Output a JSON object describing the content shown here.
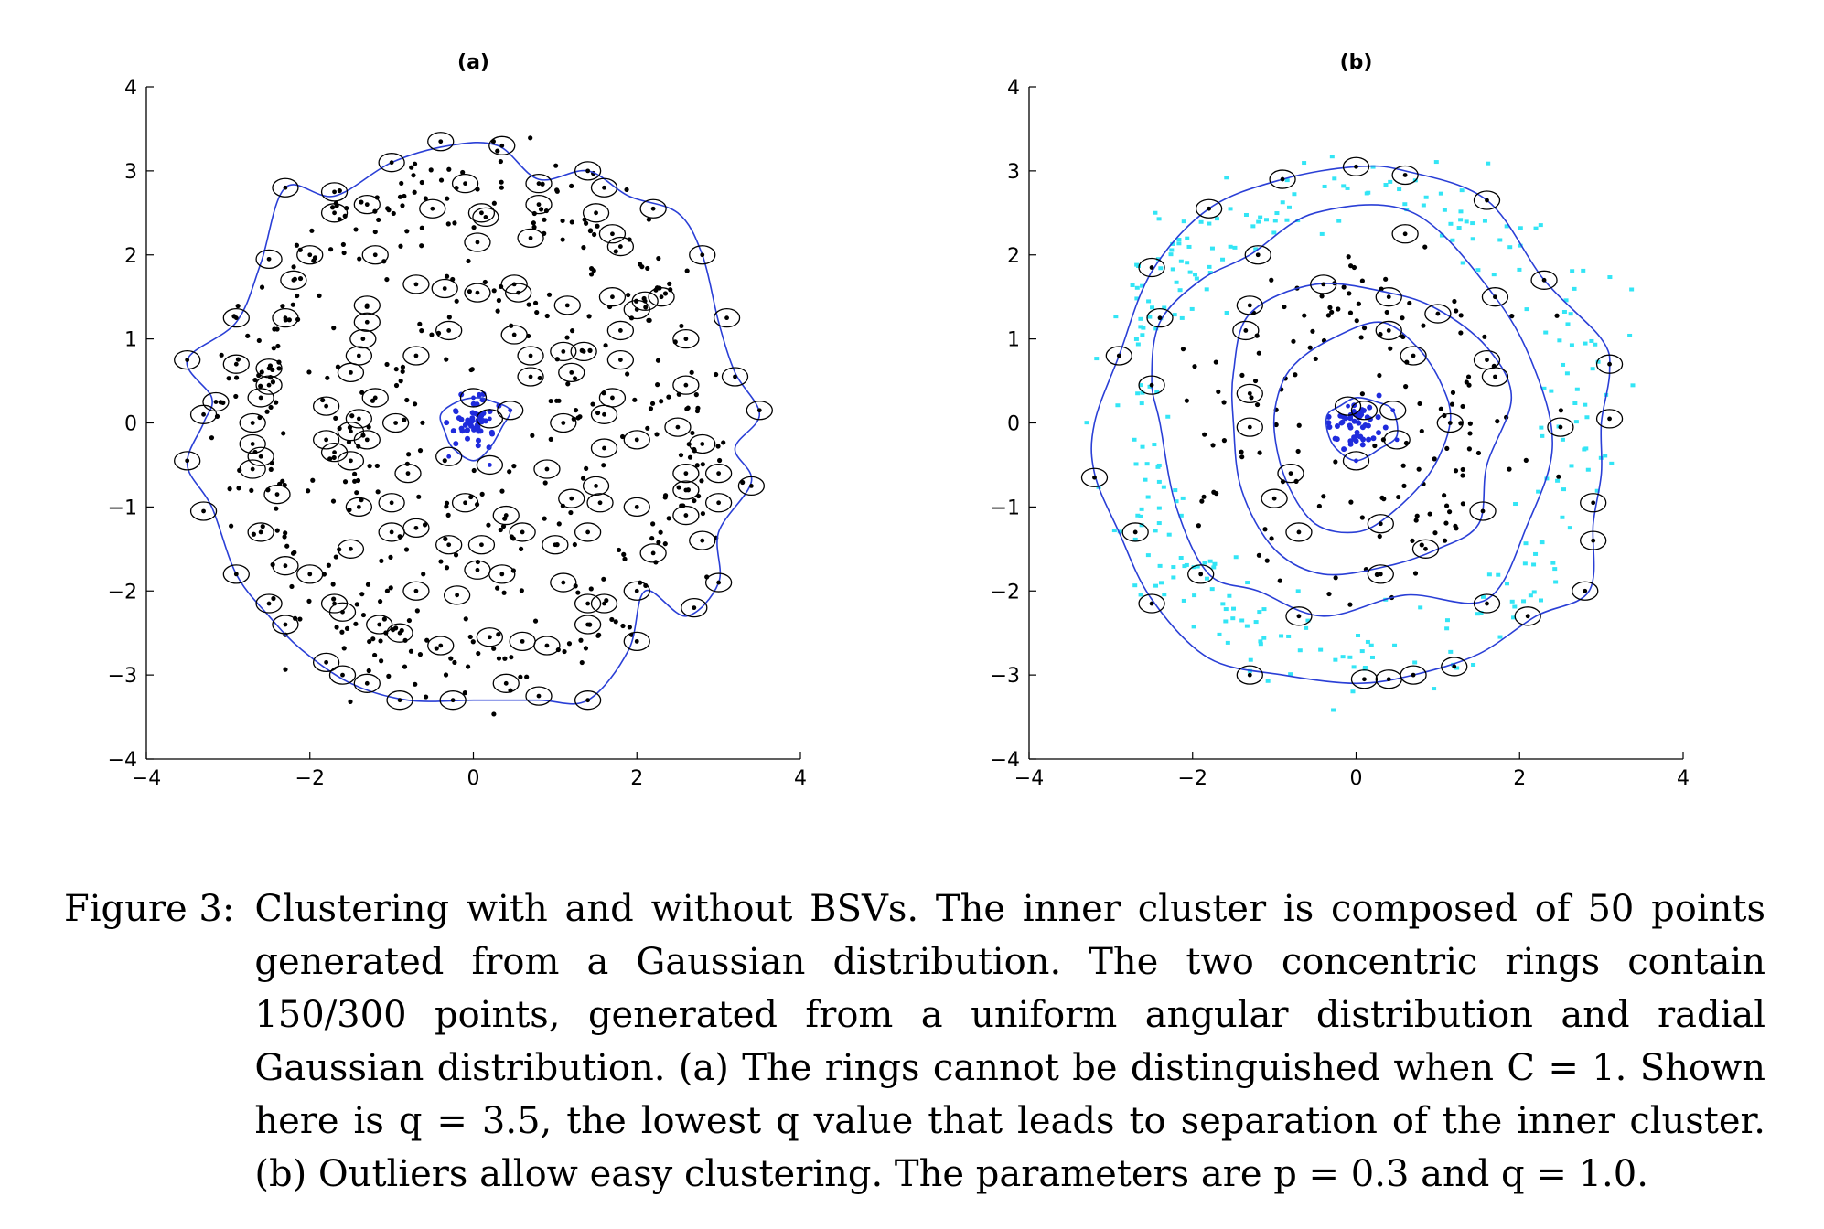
{
  "caption": {
    "label": "Figure 3:",
    "text": "Clustering with and without BSVs. The inner cluster is composed of 50 points generated from a Gaussian distribution. The two concentric rings contain 150/300 points, generated from a uniform angular distribution and radial Gaussian distribution. (a) The rings cannot be distinguished when C = 1. Shown here is q = 3.5, the lowest q value that leads to separation of the inner cluster. (b) Outliers allow easy clustering. The parameters are p = 0.3 and q = 1.0."
  },
  "colors": {
    "inner_points": "#1f2bdc",
    "ring_points": "#000000",
    "outliers": "#33e5f5",
    "contours": "#2a3fd6",
    "sv_circles": "#000000"
  },
  "chart_data": [
    {
      "type": "scatter",
      "title": "(a)",
      "xlim": [
        -4,
        4
      ],
      "ylim": [
        -4,
        4
      ],
      "xticks": [
        "−4",
        "−2",
        "0",
        "2",
        "4"
      ],
      "yticks": [
        "4",
        "3",
        "2",
        "1",
        "0",
        "−1",
        "−2",
        "−3",
        "−4"
      ],
      "grid": false,
      "series": [
        {
          "values_description": "inner cluster",
          "count": 50,
          "center": [
            0,
            0
          ],
          "spread": 0.3
        },
        {
          "values_description": "ring 1",
          "count": 150,
          "radius": 1.5,
          "spread": 0.45
        },
        {
          "values_description": "ring 2",
          "count": 300,
          "radius": 2.8,
          "spread": 0.4
        }
      ],
      "contour_inner": [
        [
          -0.4,
          0.1
        ],
        [
          -0.2,
          0.25
        ],
        [
          0.05,
          0.3
        ],
        [
          0.25,
          0.25
        ],
        [
          0.45,
          0.15
        ],
        [
          0.35,
          -0.05
        ],
        [
          0.2,
          -0.3
        ],
        [
          0,
          -0.45
        ],
        [
          -0.25,
          -0.3
        ],
        [
          -0.35,
          -0.1
        ]
      ],
      "contour_outer": [
        [
          -0.3,
          3.3
        ],
        [
          0.3,
          3.3
        ],
        [
          0.8,
          2.9
        ],
        [
          1.4,
          3.0
        ],
        [
          1.9,
          2.7
        ],
        [
          2.5,
          2.5
        ],
        [
          2.8,
          2.0
        ],
        [
          3.0,
          1.2
        ],
        [
          3.2,
          0.6
        ],
        [
          3.5,
          0.1
        ],
        [
          3.2,
          -0.3
        ],
        [
          3.4,
          -0.7
        ],
        [
          3.0,
          -1.3
        ],
        [
          3.0,
          -1.9
        ],
        [
          2.6,
          -2.3
        ],
        [
          2.1,
          -2.0
        ],
        [
          1.9,
          -2.7
        ],
        [
          1.4,
          -3.3
        ],
        [
          0.8,
          -3.3
        ],
        [
          0,
          -3.3
        ],
        [
          -0.8,
          -3.3
        ],
        [
          -1.5,
          -3.1
        ],
        [
          -2.1,
          -2.7
        ],
        [
          -2.5,
          -2.3
        ],
        [
          -2.9,
          -1.8
        ],
        [
          -3.2,
          -1.0
        ],
        [
          -3.5,
          -0.5
        ],
        [
          -3.3,
          0.0
        ],
        [
          -3.2,
          0.3
        ],
        [
          -3.5,
          0.75
        ],
        [
          -2.9,
          1.2
        ],
        [
          -2.6,
          1.9
        ],
        [
          -2.3,
          2.8
        ],
        [
          -1.7,
          2.7
        ],
        [
          -1.0,
          3.1
        ]
      ],
      "support_vectors": [
        [
          -0.4,
          3.35
        ],
        [
          0.35,
          3.3
        ],
        [
          -1.0,
          3.1
        ],
        [
          0.8,
          2.85
        ],
        [
          1.4,
          3.0
        ],
        [
          -2.3,
          2.8
        ],
        [
          -1.7,
          2.75
        ],
        [
          -0.1,
          2.85
        ],
        [
          0.8,
          2.6
        ],
        [
          1.6,
          2.8
        ],
        [
          1.5,
          2.5
        ],
        [
          2.2,
          2.55
        ],
        [
          -1.7,
          2.5
        ],
        [
          -1.3,
          2.6
        ],
        [
          -0.5,
          2.55
        ],
        [
          0.1,
          2.5
        ],
        [
          0.15,
          2.45
        ],
        [
          0.7,
          2.2
        ],
        [
          1.7,
          2.25
        ],
        [
          1.8,
          2.1
        ],
        [
          0.05,
          2.15
        ],
        [
          2.8,
          2.0
        ],
        [
          -2.5,
          1.95
        ],
        [
          -2.0,
          2.0
        ],
        [
          -1.2,
          2.0
        ],
        [
          -2.2,
          1.7
        ],
        [
          -0.7,
          1.65
        ],
        [
          -0.35,
          1.6
        ],
        [
          0.05,
          1.55
        ],
        [
          0.5,
          1.65
        ],
        [
          0.55,
          1.55
        ],
        [
          1.7,
          1.5
        ],
        [
          2.1,
          1.45
        ],
        [
          2.3,
          1.5
        ],
        [
          1.15,
          1.4
        ],
        [
          2.0,
          1.35
        ],
        [
          -2.9,
          1.25
        ],
        [
          -2.3,
          1.25
        ],
        [
          -1.3,
          1.4
        ],
        [
          -1.3,
          1.2
        ],
        [
          3.1,
          1.25
        ],
        [
          -1.35,
          1.0
        ],
        [
          -0.3,
          1.1
        ],
        [
          2.6,
          1.0
        ],
        [
          0.5,
          1.05
        ],
        [
          1.8,
          1.1
        ],
        [
          -3.5,
          0.75
        ],
        [
          -2.9,
          0.7
        ],
        [
          -2.5,
          0.65
        ],
        [
          -1.4,
          0.8
        ],
        [
          -0.7,
          0.8
        ],
        [
          0.7,
          0.8
        ],
        [
          1.1,
          0.85
        ],
        [
          1.35,
          0.85
        ],
        [
          1.8,
          0.75
        ],
        [
          0.7,
          0.55
        ],
        [
          1.2,
          0.6
        ],
        [
          -1.5,
          0.6
        ],
        [
          -2.5,
          0.45
        ],
        [
          3.2,
          0.55
        ],
        [
          2.6,
          0.45
        ],
        [
          -3.15,
          0.25
        ],
        [
          -2.6,
          0.3
        ],
        [
          -1.2,
          0.3
        ],
        [
          0.0,
          0.3
        ],
        [
          1.7,
          0.3
        ],
        [
          -1.8,
          0.2
        ],
        [
          -3.3,
          0.1
        ],
        [
          -2.7,
          0.0
        ],
        [
          -1.4,
          0.05
        ],
        [
          -0.95,
          0.0
        ],
        [
          0.2,
          0.05
        ],
        [
          0.45,
          0.15
        ],
        [
          1.1,
          0.0
        ],
        [
          1.6,
          0.1
        ],
        [
          3.5,
          0.15
        ],
        [
          -1.5,
          -0.1
        ],
        [
          -1.3,
          -0.2
        ],
        [
          2.5,
          -0.05
        ],
        [
          2.0,
          -0.2
        ],
        [
          -2.7,
          -0.25
        ],
        [
          -1.8,
          -0.2
        ],
        [
          -2.6,
          -0.4
        ],
        [
          -1.7,
          -0.35
        ],
        [
          -1.5,
          -0.45
        ],
        [
          -3.5,
          -0.45
        ],
        [
          -2.7,
          -0.55
        ],
        [
          1.6,
          -0.3
        ],
        [
          -0.8,
          -0.6
        ],
        [
          0.9,
          -0.55
        ],
        [
          2.8,
          -0.25
        ],
        [
          2.6,
          -0.6
        ],
        [
          3.0,
          -0.6
        ],
        [
          3.4,
          -0.75
        ],
        [
          -0.3,
          -0.4
        ],
        [
          0.2,
          -0.5
        ],
        [
          1.5,
          -0.75
        ],
        [
          2.6,
          -0.8
        ],
        [
          -2.4,
          -0.85
        ],
        [
          -1.0,
          -0.95
        ],
        [
          -1.4,
          -1.0
        ],
        [
          -0.1,
          -0.95
        ],
        [
          1.2,
          -0.9
        ],
        [
          1.55,
          -0.95
        ],
        [
          2.0,
          -1.0
        ],
        [
          2.6,
          -1.1
        ],
        [
          3.0,
          -0.95
        ],
        [
          -3.3,
          -1.05
        ],
        [
          -1.0,
          -1.3
        ],
        [
          -0.3,
          -1.45
        ],
        [
          0.1,
          -1.45
        ],
        [
          0.4,
          -1.1
        ],
        [
          0.6,
          -1.3
        ],
        [
          1.0,
          -1.45
        ],
        [
          1.4,
          -1.3
        ],
        [
          2.8,
          -1.4
        ],
        [
          -2.6,
          -1.3
        ],
        [
          -1.5,
          -1.5
        ],
        [
          -0.7,
          -1.25
        ],
        [
          2.2,
          -1.55
        ],
        [
          -2.3,
          -1.7
        ],
        [
          0.05,
          -1.75
        ],
        [
          0.35,
          -1.8
        ],
        [
          -2.9,
          -1.8
        ],
        [
          -2.0,
          -1.8
        ],
        [
          1.1,
          -1.9
        ],
        [
          3.0,
          -1.9
        ],
        [
          -0.7,
          -2.0
        ],
        [
          -0.2,
          -2.05
        ],
        [
          -2.5,
          -2.15
        ],
        [
          -1.7,
          -2.15
        ],
        [
          -1.6,
          -2.25
        ],
        [
          1.4,
          -2.15
        ],
        [
          1.6,
          -2.15
        ],
        [
          2.7,
          -2.2
        ],
        [
          2.0,
          -2.0
        ],
        [
          -2.3,
          -2.4
        ],
        [
          -1.15,
          -2.4
        ],
        [
          -0.9,
          -2.5
        ],
        [
          1.4,
          -2.4
        ],
        [
          -0.4,
          -2.65
        ],
        [
          0.2,
          -2.55
        ],
        [
          0.6,
          -2.6
        ],
        [
          0.9,
          -2.65
        ],
        [
          2.0,
          -2.6
        ],
        [
          -1.8,
          -2.85
        ],
        [
          -1.6,
          -3.0
        ],
        [
          -1.3,
          -3.1
        ],
        [
          0.4,
          -3.1
        ],
        [
          0.8,
          -3.25
        ],
        [
          -0.9,
          -3.3
        ],
        [
          -0.25,
          -3.3
        ],
        [
          1.4,
          -3.3
        ]
      ]
    },
    {
      "type": "scatter",
      "title": "(b)",
      "xlim": [
        -4,
        4
      ],
      "ylim": [
        -4,
        4
      ],
      "xticks": [
        "−4",
        "−2",
        "0",
        "2",
        "4"
      ],
      "yticks": [
        "4",
        "3",
        "2",
        "1",
        "0",
        "−1",
        "−2",
        "−3",
        "−4"
      ],
      "grid": false,
      "series": [
        {
          "values_description": "inner cluster",
          "count": 50,
          "center": [
            0,
            0
          ],
          "spread": 0.3
        },
        {
          "values_description": "ring 1 (cluster)",
          "count": 150,
          "radius": 1.5,
          "spread": 0.45
        },
        {
          "values_description": "ring 2 outliers",
          "count": 300,
          "radius": 2.8,
          "spread": 0.4
        }
      ],
      "contour_inner": [
        [
          -0.35,
          0.1
        ],
        [
          -0.2,
          0.2
        ],
        [
          0.0,
          0.3
        ],
        [
          0.25,
          0.25
        ],
        [
          0.45,
          0.15
        ],
        [
          0.5,
          -0.15
        ],
        [
          0.3,
          -0.3
        ],
        [
          0.0,
          -0.45
        ],
        [
          -0.25,
          -0.3
        ],
        [
          -0.35,
          -0.1
        ]
      ],
      "contour_ring1_inner": [
        [
          -0.75,
          0.7
        ],
        [
          -0.3,
          1.0
        ],
        [
          0.3,
          1.2
        ],
        [
          0.75,
          0.9
        ],
        [
          1.05,
          0.45
        ],
        [
          1.15,
          0.0
        ],
        [
          0.9,
          -0.6
        ],
        [
          0.4,
          -1.1
        ],
        [
          0.0,
          -1.3
        ],
        [
          -0.5,
          -1.2
        ],
        [
          -0.85,
          -0.7
        ],
        [
          -1.0,
          -0.1
        ],
        [
          -0.95,
          0.35
        ]
      ],
      "contour_ring1_outer": [
        [
          -1.3,
          1.3
        ],
        [
          -0.5,
          1.65
        ],
        [
          0.4,
          1.55
        ],
        [
          1.0,
          1.35
        ],
        [
          1.6,
          0.9
        ],
        [
          1.9,
          0.3
        ],
        [
          1.6,
          -0.5
        ],
        [
          1.5,
          -1.2
        ],
        [
          1.0,
          -1.5
        ],
        [
          0.4,
          -1.7
        ],
        [
          -0.4,
          -1.8
        ],
        [
          -1.0,
          -1.5
        ],
        [
          -1.4,
          -0.8
        ],
        [
          -1.5,
          0.0
        ],
        [
          -1.5,
          0.6
        ]
      ],
      "contour_ring2_inner": [
        [
          -1.3,
          2.0
        ],
        [
          -0.5,
          2.5
        ],
        [
          0.7,
          2.5
        ],
        [
          1.7,
          1.5
        ],
        [
          2.2,
          0.6
        ],
        [
          2.4,
          -0.3
        ],
        [
          2.1,
          -1.2
        ],
        [
          1.6,
          -2.1
        ],
        [
          0.6,
          -2.05
        ],
        [
          -0.4,
          -2.3
        ],
        [
          -1.2,
          -2.0
        ],
        [
          -1.8,
          -1.8
        ],
        [
          -2.2,
          -1.0
        ],
        [
          -2.4,
          0.0
        ],
        [
          -2.5,
          0.5
        ],
        [
          -2.4,
          1.2
        ],
        [
          -1.9,
          1.7
        ]
      ],
      "contour_ring2_outer": [
        [
          -1.8,
          2.55
        ],
        [
          -0.9,
          2.9
        ],
        [
          0.0,
          3.05
        ],
        [
          0.6,
          3.0
        ],
        [
          1.6,
          2.65
        ],
        [
          2.3,
          1.7
        ],
        [
          3.0,
          1.0
        ],
        [
          3.1,
          0.6
        ],
        [
          3.0,
          0.0
        ],
        [
          3.0,
          -0.6
        ],
        [
          2.9,
          -1.2
        ],
        [
          2.85,
          -2.0
        ],
        [
          2.2,
          -2.3
        ],
        [
          1.5,
          -2.75
        ],
        [
          0.7,
          -3.0
        ],
        [
          0.0,
          -3.1
        ],
        [
          -0.9,
          -3.0
        ],
        [
          -1.8,
          -2.8
        ],
        [
          -2.5,
          -2.1
        ],
        [
          -2.9,
          -1.3
        ],
        [
          -3.2,
          -0.6
        ],
        [
          -3.2,
          0.0
        ],
        [
          -2.9,
          0.8
        ],
        [
          -2.5,
          1.8
        ]
      ],
      "support_vectors": [
        [
          0.0,
          3.05
        ],
        [
          0.6,
          2.95
        ],
        [
          -0.9,
          2.9
        ],
        [
          1.6,
          2.65
        ],
        [
          -1.8,
          2.55
        ],
        [
          0.6,
          2.25
        ],
        [
          -1.2,
          2.0
        ],
        [
          -2.5,
          1.85
        ],
        [
          2.3,
          1.7
        ],
        [
          -0.4,
          1.65
        ],
        [
          0.4,
          1.5
        ],
        [
          1.7,
          1.5
        ],
        [
          -2.4,
          1.25
        ],
        [
          -1.3,
          1.4
        ],
        [
          1.0,
          1.3
        ],
        [
          -1.35,
          1.1
        ],
        [
          0.4,
          1.1
        ],
        [
          -2.9,
          0.8
        ],
        [
          0.7,
          0.8
        ],
        [
          1.6,
          0.75
        ],
        [
          1.7,
          0.55
        ],
        [
          3.1,
          0.7
        ],
        [
          -2.5,
          0.45
        ],
        [
          -1.3,
          0.35
        ],
        [
          -0.1,
          0.2
        ],
        [
          0.1,
          0.15
        ],
        [
          0.45,
          0.15
        ],
        [
          1.15,
          0.0
        ],
        [
          2.5,
          -0.05
        ],
        [
          3.1,
          0.05
        ],
        [
          -1.3,
          -0.05
        ],
        [
          0.5,
          -0.2
        ],
        [
          0.0,
          -0.45
        ],
        [
          -0.8,
          -0.6
        ],
        [
          -3.2,
          -0.65
        ],
        [
          -1.0,
          -0.9
        ],
        [
          1.55,
          -1.05
        ],
        [
          2.9,
          -0.95
        ],
        [
          -2.7,
          -1.3
        ],
        [
          -0.7,
          -1.3
        ],
        [
          0.3,
          -1.2
        ],
        [
          0.85,
          -1.5
        ],
        [
          2.9,
          -1.4
        ],
        [
          0.3,
          -1.8
        ],
        [
          -1.9,
          -1.8
        ],
        [
          2.8,
          -2.0
        ],
        [
          -2.5,
          -2.15
        ],
        [
          1.6,
          -2.15
        ],
        [
          -0.7,
          -2.3
        ],
        [
          2.1,
          -2.3
        ],
        [
          1.2,
          -2.9
        ],
        [
          -1.3,
          -3.0
        ],
        [
          0.1,
          -3.05
        ],
        [
          0.4,
          -3.05
        ],
        [
          0.7,
          -3.0
        ]
      ]
    }
  ]
}
